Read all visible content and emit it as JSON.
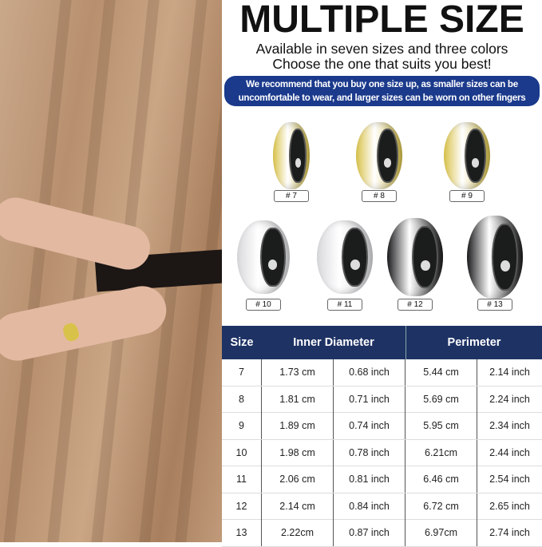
{
  "title": "MULTIPLE SIZE",
  "subtitle_lines": [
    "Available in seven sizes and three colors",
    "Choose the one that suits you best!"
  ],
  "banner_lines": [
    "We recommend that you buy one size up, as smaller sizes can be",
    "uncomfortable to wear, and larger sizes can be worn on other fingers"
  ],
  "colors": {
    "gold": "#d9c24a",
    "silver": "#d8d9dc",
    "black": "#1b1b1d",
    "banner": "#1b3a8c",
    "table_header": "#1e3264"
  },
  "rings": [
    {
      "label": "# 7",
      "color": "gold"
    },
    {
      "label": "# 8",
      "color": "gold"
    },
    {
      "label": "# 9",
      "color": "gold"
    },
    {
      "label": "# 10",
      "color": "silver"
    },
    {
      "label": "# 11",
      "color": "silver"
    },
    {
      "label": "# 12",
      "color": "black"
    },
    {
      "label": "# 13",
      "color": "black"
    }
  ],
  "table": {
    "headers": [
      "Size",
      "Inner Diameter",
      "Perimeter"
    ],
    "rows": [
      [
        "7",
        "1.73 cm",
        "0.68 inch",
        "5.44 cm",
        "2.14 inch"
      ],
      [
        "8",
        "1.81 cm",
        "0.71 inch",
        "5.69 cm",
        "2.24 inch"
      ],
      [
        "9",
        "1.89 cm",
        "0.74 inch",
        "5.95 cm",
        "2.34 inch"
      ],
      [
        "10",
        "1.98 cm",
        "0.78 inch",
        "6.21cm",
        "2.44 inch"
      ],
      [
        "11",
        "2.06 cm",
        "0.81 inch",
        "6.46 cm",
        "2.54 inch"
      ],
      [
        "12",
        "2.14 cm",
        "0.84 inch",
        "6.72 cm",
        "2.65 inch"
      ],
      [
        "13",
        "2.22cm",
        "0.87 inch",
        "6.97cm",
        "2.74 inch"
      ]
    ]
  }
}
